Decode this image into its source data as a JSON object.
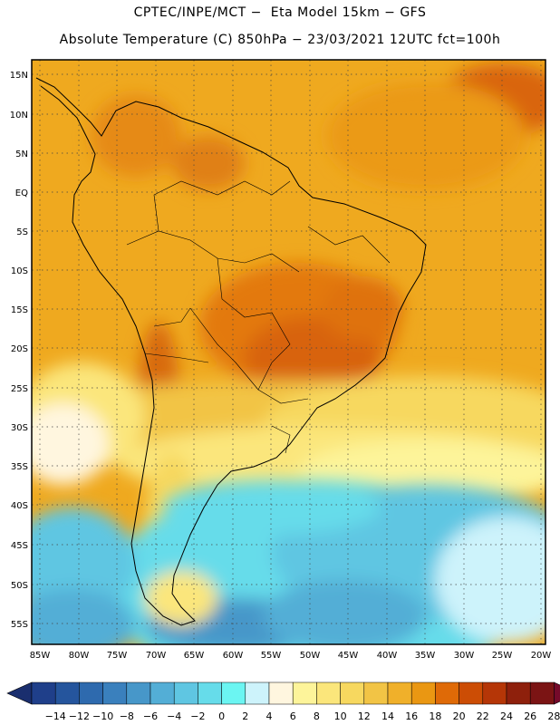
{
  "header": {
    "line1": "CPTEC/INPE/MCT −  Eta Model 15km − GFS",
    "line2": "Absolute Temperature (C) 850hPa − 23/03/2021 12UTC fct=100h"
  },
  "map": {
    "lat_labels": [
      "15N",
      "10N",
      "5N",
      "EQ",
      "5S",
      "10S",
      "15S",
      "20S",
      "25S",
      "30S",
      "35S",
      "40S",
      "45S",
      "50S",
      "55S"
    ],
    "lon_labels": [
      "85W",
      "80W",
      "75W",
      "70W",
      "65W",
      "60W",
      "55W",
      "50W",
      "45W",
      "40W",
      "35W",
      "30W",
      "25W",
      "20W"
    ],
    "grid": "dotted"
  },
  "colorbar": {
    "labels": [
      "−14",
      "−12",
      "−10",
      "−8",
      "−6",
      "−4",
      "−2",
      "0",
      "2",
      "4",
      "6",
      "8",
      "10",
      "12",
      "14",
      "16",
      "18",
      "20",
      "22",
      "24",
      "26",
      "28"
    ],
    "colors": [
      "#1f3f8a",
      "#25559d",
      "#2e6aae",
      "#3a80bd",
      "#4797c9",
      "#53aed6",
      "#5fc6e2",
      "#66dcea",
      "#6bf5f2",
      "#cdf3fb",
      "#fff6df",
      "#fdf49a",
      "#fbe67b",
      "#f7d85f",
      "#f2c445",
      "#f0b02a",
      "#ea9712",
      "#df6a07",
      "#cc4d05",
      "#b53607",
      "#8e200c",
      "#7b1414"
    ],
    "under_color": "#1a2e6e",
    "over_color": "#750a2a"
  }
}
